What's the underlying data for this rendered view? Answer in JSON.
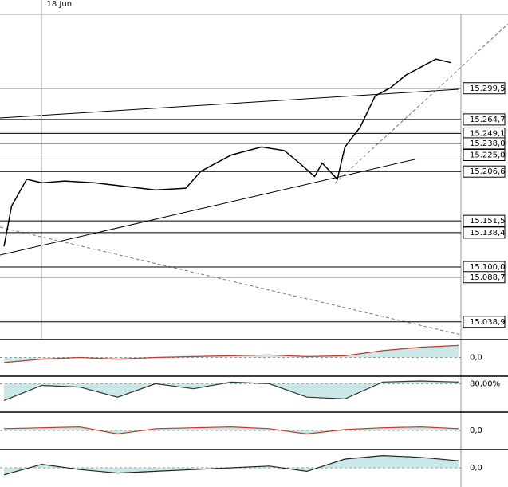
{
  "chart_data": [
    {
      "type": "line",
      "color": "#000000",
      "x": [
        0,
        1,
        3,
        5,
        8,
        12,
        16,
        20,
        24,
        26,
        30,
        34,
        37,
        39,
        41,
        42,
        44,
        45,
        47,
        49,
        51,
        53,
        55,
        57,
        59
      ],
      "values": [
        15123,
        15168,
        15198,
        15194,
        15196,
        15194,
        15190,
        15186,
        15188,
        15207,
        15225,
        15234,
        15230,
        15216,
        15201,
        15216,
        15198,
        15234,
        15256,
        15291,
        15300,
        15314,
        15323,
        15332,
        15328
      ],
      "xlim": [
        0,
        60
      ],
      "ylim": [
        15020,
        15382
      ],
      "xticks": [
        {
          "value": 5,
          "label": "18 Jun"
        }
      ],
      "yticks": [
        {
          "value": 15299.5,
          "label": "15.299,5"
        },
        {
          "value": 15264.7,
          "label": "15.264,7"
        },
        {
          "value": 15249.1,
          "label": "15.249,1"
        },
        {
          "value": 15238.0,
          "label": "15.238,0"
        },
        {
          "value": 15225.0,
          "label": "15.225,0"
        },
        {
          "value": 15206.6,
          "label": "15.206,6"
        },
        {
          "value": 15151.5,
          "label": "15.151,5"
        },
        {
          "value": 15138.4,
          "label": "15.138,4"
        },
        {
          "value": 15100.0,
          "label": "15.100,0"
        },
        {
          "value": 15088.7,
          "label": "15.088,7"
        },
        {
          "value": 15038.9,
          "label": "15.038,9"
        }
      ]
    },
    {
      "type": "area",
      "color": "#c0392b",
      "x": [
        0,
        5,
        10,
        15,
        20,
        25,
        30,
        35,
        40,
        45,
        50,
        55,
        60
      ],
      "values": [
        -0.3,
        -0.1,
        0,
        -0.1,
        0,
        0.05,
        0.1,
        0.15,
        0.05,
        0.1,
        0.4,
        0.6,
        0.7
      ],
      "xlim": [
        0,
        60
      ],
      "ylim": [
        -1,
        1
      ],
      "yticks": [
        {
          "value": 0,
          "label": "0,0"
        }
      ]
    },
    {
      "type": "area",
      "color": "#333333",
      "x": [
        0,
        5,
        10,
        15,
        20,
        25,
        30,
        35,
        40,
        45,
        50,
        55,
        60
      ],
      "values": [
        30,
        75,
        70,
        40,
        80,
        65,
        85,
        80,
        40,
        35,
        85,
        88,
        85
      ],
      "xlim": [
        0,
        60
      ],
      "ylim": [
        0,
        100
      ],
      "yticks": [
        {
          "value": 80,
          "label": "80,00%"
        }
      ]
    },
    {
      "type": "area",
      "color": "#c0392b",
      "x": [
        0,
        5,
        10,
        15,
        20,
        25,
        30,
        35,
        40,
        45,
        50,
        55,
        60
      ],
      "values": [
        0.1,
        0.15,
        0.2,
        -0.2,
        0.1,
        0.15,
        0.2,
        0.1,
        -0.2,
        0.05,
        0.15,
        0.2,
        0.1
      ],
      "xlim": [
        0,
        60
      ],
      "ylim": [
        -1,
        1
      ],
      "yticks": [
        {
          "value": 0,
          "label": "0,0"
        }
      ]
    },
    {
      "type": "area",
      "color": "#222222",
      "x": [
        0,
        5,
        10,
        15,
        20,
        25,
        30,
        35,
        40,
        45,
        50,
        55,
        60
      ],
      "values": [
        -0.4,
        0.2,
        -0.1,
        -0.3,
        -0.2,
        -0.1,
        0,
        0.1,
        -0.2,
        0.5,
        0.7,
        0.6,
        0.4
      ],
      "xlim": [
        0,
        60
      ],
      "ylim": [
        -1,
        1
      ],
      "yticks": [
        {
          "value": 0,
          "label": "0,0"
        }
      ]
    }
  ]
}
